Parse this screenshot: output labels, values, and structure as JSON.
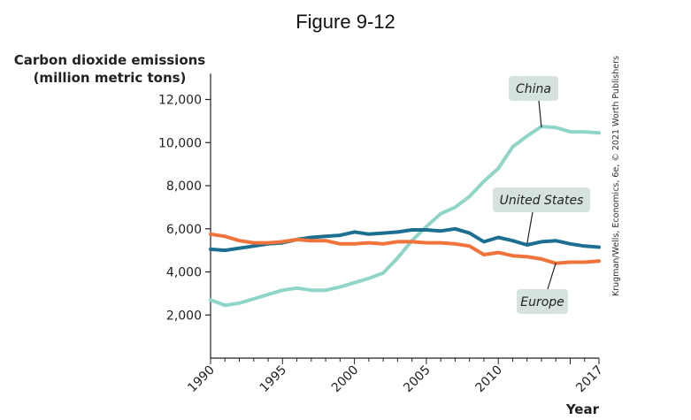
{
  "figure_title": "Figure 9-12",
  "credit": "Krugman/Wells, Economics, 6e, © 2021 Worth Publishers",
  "chart_data": {
    "type": "line",
    "title": "",
    "ylabel_lines": [
      "Carbon dioxide emissions",
      "(million metric tons)"
    ],
    "xlabel": "Year",
    "xlim": [
      1990,
      2017
    ],
    "ylim": [
      0,
      12000
    ],
    "x_ticks": [
      "1990",
      "1995",
      "2000",
      "2005",
      "2010",
      "2017"
    ],
    "y_ticks": [
      "2,000",
      "4,000",
      "6,000",
      "8,000",
      "10,000",
      "12,000"
    ],
    "grid": false,
    "x": [
      1990,
      1991,
      1992,
      1993,
      1994,
      1995,
      1996,
      1997,
      1998,
      1999,
      2000,
      2001,
      2002,
      2003,
      2004,
      2005,
      2006,
      2007,
      2008,
      2009,
      2010,
      2011,
      2012,
      2013,
      2014,
      2015,
      2016,
      2017
    ],
    "series": [
      {
        "name": "China",
        "color": "#8fd6c8",
        "values": [
          2700,
          2450,
          2550,
          2750,
          2950,
          3150,
          3250,
          3150,
          3150,
          3300,
          3500,
          3700,
          3950,
          4650,
          5450,
          6100,
          6700,
          7000,
          7500,
          8200,
          8800,
          9800,
          10300,
          10750,
          10700,
          10500,
          10500,
          10450
        ]
      },
      {
        "name": "United States",
        "color": "#1d6f91",
        "values": [
          5050,
          5000,
          5100,
          5200,
          5300,
          5350,
          5500,
          5600,
          5650,
          5700,
          5850,
          5750,
          5800,
          5850,
          5950,
          5950,
          5900,
          6000,
          5800,
          5400,
          5600,
          5450,
          5250,
          5400,
          5450,
          5300,
          5200,
          5150
        ]
      },
      {
        "name": "Europe",
        "color": "#f0733a",
        "values": [
          5750,
          5650,
          5450,
          5350,
          5350,
          5400,
          5500,
          5450,
          5450,
          5300,
          5300,
          5350,
          5300,
          5400,
          5400,
          5350,
          5350,
          5300,
          5200,
          4800,
          4900,
          4750,
          4700,
          4600,
          4400,
          4450,
          4450,
          4500
        ]
      }
    ]
  }
}
